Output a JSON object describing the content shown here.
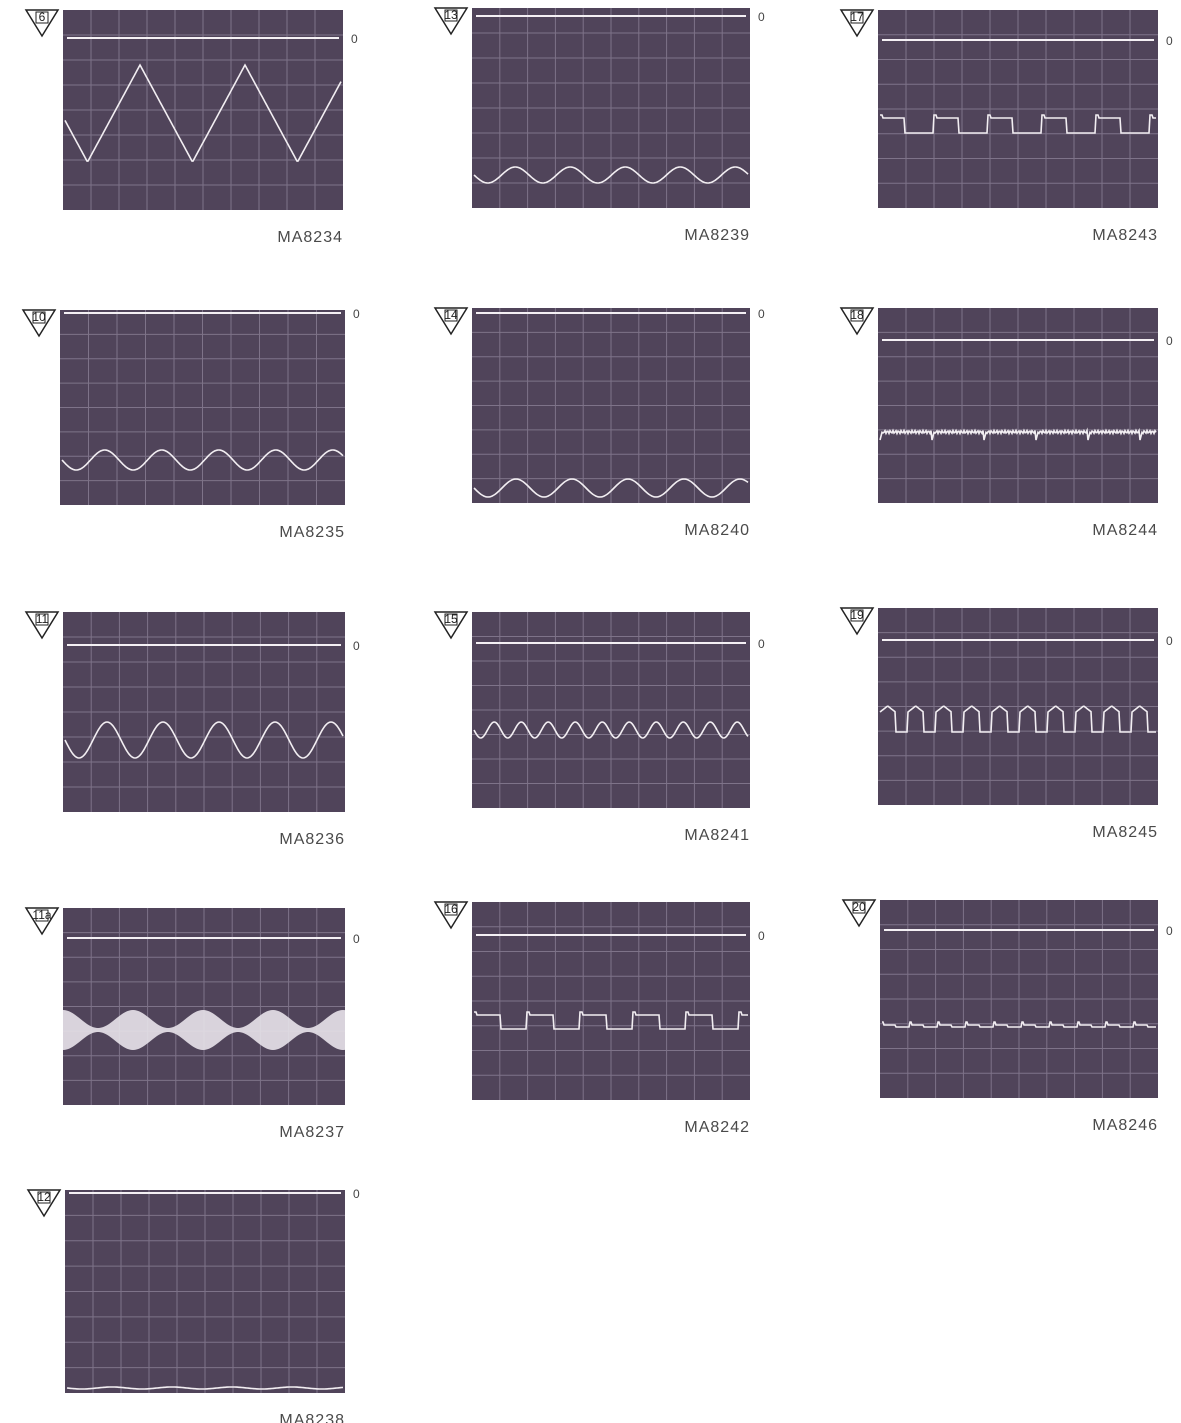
{
  "panels": [
    {
      "marker": "6",
      "zero": "0",
      "caption": "MA8234"
    },
    {
      "marker": "13",
      "zero": "0",
      "caption": "MA8239"
    },
    {
      "marker": "17",
      "zero": "0",
      "caption": "MA8243"
    },
    {
      "marker": "10",
      "zero": "0",
      "caption": "MA8235"
    },
    {
      "marker": "14",
      "zero": "0",
      "caption": "MA8240"
    },
    {
      "marker": "18",
      "zero": "0",
      "caption": "MA8244"
    },
    {
      "marker": "11",
      "zero": "0",
      "caption": "MA8236"
    },
    {
      "marker": "15",
      "zero": "0",
      "caption": "MA8241"
    },
    {
      "marker": "19",
      "zero": "0",
      "caption": "MA8245"
    },
    {
      "marker": "11a",
      "zero": "0",
      "caption": "MA8237"
    },
    {
      "marker": "16",
      "zero": "0",
      "caption": "MA8242"
    },
    {
      "marker": "20",
      "zero": "0",
      "caption": "MA8246"
    },
    {
      "marker": "12",
      "zero": "0",
      "caption": "MA8238"
    }
  ]
}
